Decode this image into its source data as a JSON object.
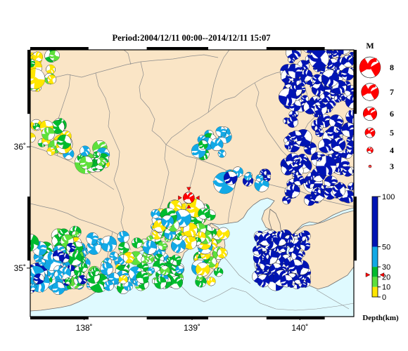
{
  "title": "Period:2004/12/11 00:00--2014/12/11 15:07",
  "colors": {
    "land": "#fae5c6",
    "sea": "#dffaff",
    "border": "#8c8c8c",
    "coast": "#6e6e6e",
    "event": "#ff0000",
    "depth_0_10": "#ffe600",
    "depth_10_20": "#5ee03c",
    "depth_20_30": "#00bb2e",
    "depth_30_50": "#12a9e6",
    "depth_50_100": "#0014b4"
  },
  "axes": {
    "x_ticks": [
      {
        "value": 138,
        "label": "138˚"
      },
      {
        "value": 139,
        "label": "139˚"
      },
      {
        "value": 140,
        "label": "140˚"
      }
    ],
    "y_ticks": [
      {
        "value": 36,
        "label": "36˚"
      },
      {
        "value": 35,
        "label": "35˚"
      }
    ],
    "lon_range": [
      137.5,
      140.5
    ],
    "lat_range": [
      34.6,
      36.8
    ]
  },
  "magnitude_legend": {
    "title": "M",
    "items": [
      {
        "m": 8,
        "label": "8"
      },
      {
        "m": 7,
        "label": "7"
      },
      {
        "m": 6,
        "label": "6"
      },
      {
        "m": 5,
        "label": "5"
      },
      {
        "m": 4,
        "label": "4"
      },
      {
        "m": 3,
        "label": "3"
      }
    ]
  },
  "depth_scale": {
    "title": "Depth(km)",
    "range": [
      0,
      100
    ],
    "marker_depth": 22,
    "ticks": [
      {
        "value": 100,
        "label": "100"
      },
      {
        "value": 50,
        "label": "50"
      },
      {
        "value": 30,
        "label": "30"
      },
      {
        "value": 20,
        "label": "20"
      },
      {
        "value": 10,
        "label": "10"
      },
      {
        "value": 0,
        "label": "0"
      }
    ]
  },
  "highlight_event": {
    "lon": 138.97,
    "lat": 35.58,
    "depth": 22,
    "m": 5.0
  }
}
